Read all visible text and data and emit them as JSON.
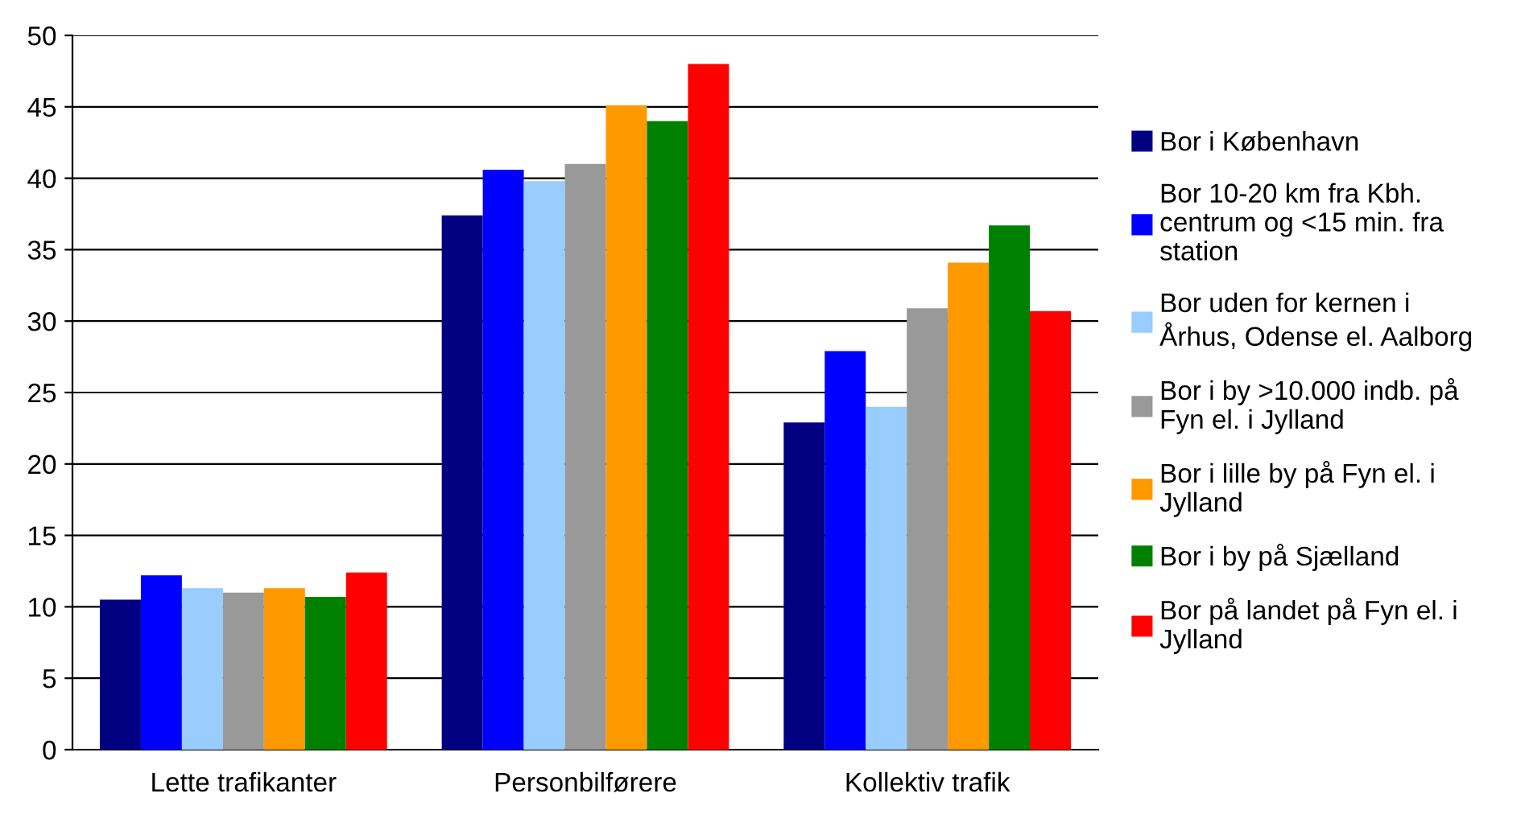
{
  "chart_data": {
    "type": "bar",
    "categories": [
      "Lette trafikanter",
      "Personbilførere",
      "Kollektiv trafik"
    ],
    "series": [
      {
        "name": "Bor i København",
        "color": "#000080",
        "values": [
          10.5,
          37.4,
          22.9
        ]
      },
      {
        "name": "Bor 10-20 km fra Kbh.\ncentrum og <15 min. fra\nstation",
        "color": "#0000ff",
        "values": [
          12.2,
          40.6,
          27.9
        ]
      },
      {
        "name": "Bor uden for kernen i\nÅrhus, Odense el. Aalborg",
        "color": "#99ccff",
        "values": [
          11.3,
          39.8,
          24.0
        ]
      },
      {
        "name": "Bor i by >10.000 indb. på\nFyn el. i Jylland",
        "color": "#999999",
        "values": [
          11.0,
          41.0,
          30.9
        ]
      },
      {
        "name": "Bor i lille by på Fyn el. i\nJylland",
        "color": "#ff9900",
        "values": [
          11.3,
          45.1,
          34.1
        ]
      },
      {
        "name": "Bor i by på Sjælland",
        "color": "#008000",
        "values": [
          10.7,
          44.0,
          36.7
        ]
      },
      {
        "name": "Bor på landet på Fyn el. i\nJylland",
        "color": "#ff0000",
        "values": [
          12.4,
          48.0,
          30.7
        ]
      }
    ],
    "ylim": [
      0,
      50
    ],
    "yticks": [
      0,
      5,
      10,
      15,
      20,
      25,
      30,
      35,
      40,
      45,
      50
    ],
    "grid": "y",
    "legend": "right"
  }
}
